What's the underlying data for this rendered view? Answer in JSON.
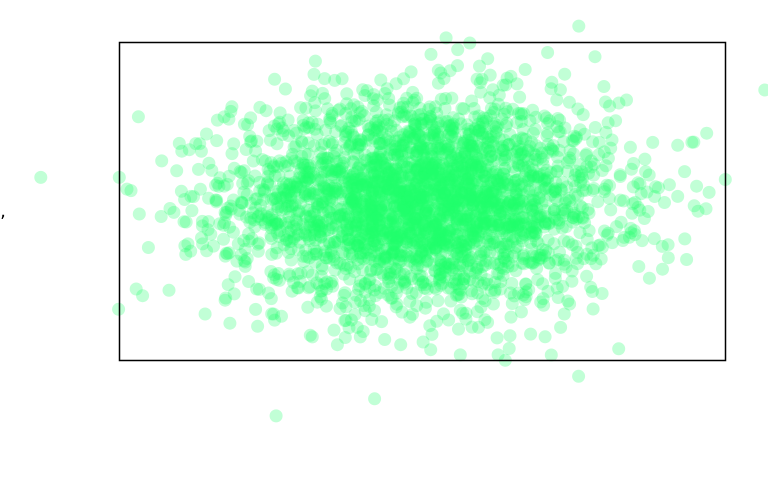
{
  "chart_data": {
    "type": "scatter",
    "title": "",
    "xlabel": "",
    "ylabel": "",
    "xlim": [
      -3.2,
      3.2
    ],
    "ylim": [
      -1.55,
      1.55
    ],
    "grid": false,
    "legend": "none",
    "point_color": "#22ff6a",
    "point_opacity": 0.28,
    "point_count": 3000,
    "distribution": {
      "x_mean": 0.0,
      "x_sd": 1.0,
      "y_mean": 0.0,
      "y_sd": 0.5
    },
    "series": [
      {
        "points": [
          [
            -2.9,
            -0.45
          ],
          [
            -2.6,
            0.3
          ],
          [
            -2.55,
            0.1
          ],
          [
            -2.5,
            -0.2
          ],
          [
            -2.45,
            0.05
          ],
          [
            -2.3,
            -1.1
          ],
          [
            -2.35,
            0.12
          ],
          [
            -2.0,
            -0.3
          ],
          [
            -1.85,
            0.75
          ],
          [
            -1.6,
            -0.95
          ],
          [
            1.7,
            0.85
          ],
          [
            2.7,
            0.55
          ],
          [
            2.85,
            0.58
          ],
          [
            2.9,
            0.15
          ],
          [
            2.7,
            0.05
          ],
          [
            2.4,
            -0.75
          ],
          [
            2.6,
            -0.55
          ],
          [
            0.5,
            1.55
          ],
          [
            0.25,
            1.6
          ],
          [
            0.4,
            -1.5
          ],
          [
            0.8,
            -1.5
          ],
          [
            -0.9,
            -1.4
          ],
          [
            -0.85,
            1.2
          ],
          [
            1.0,
            1.15
          ],
          [
            -0.2,
            1.2
          ],
          [
            1.5,
            -1.1
          ],
          [
            -1.45,
            1.1
          ],
          [
            0.1,
            -1.3
          ],
          [
            1.9,
            -0.9
          ],
          [
            -0.4,
            -1.35
          ]
        ]
      }
    ]
  }
}
